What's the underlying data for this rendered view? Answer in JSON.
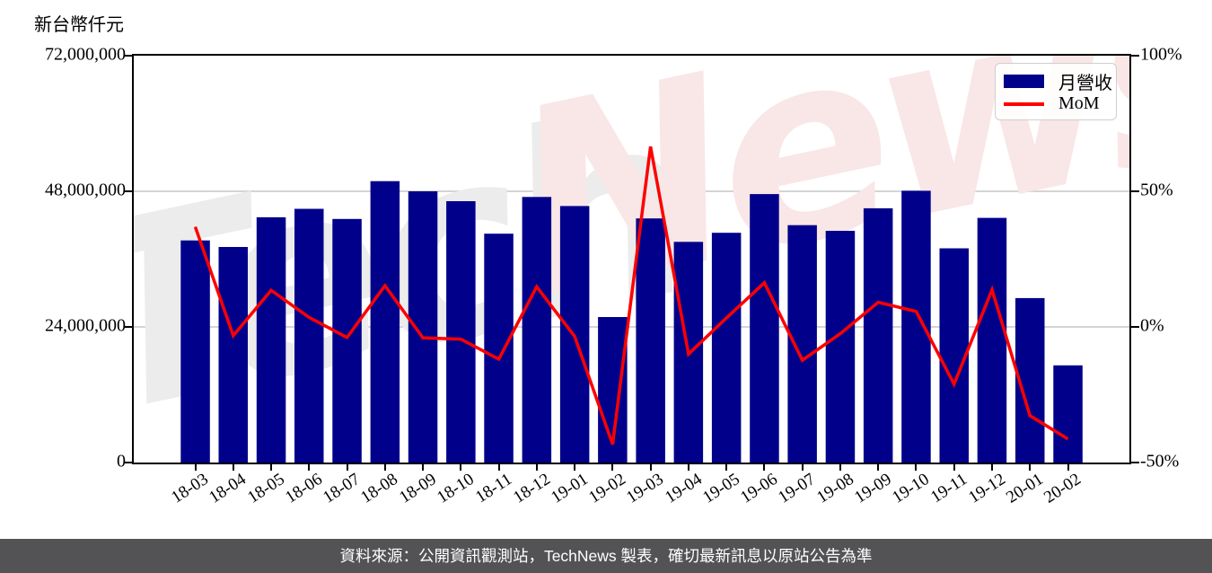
{
  "axis_unit_label": "新台幣仟元",
  "legend": {
    "series1": "月營收",
    "series2": "MoM"
  },
  "watermark": {
    "part1": "Tech",
    "part2": "News"
  },
  "footer": {
    "source_note": "資料來源：公開資訊觀測站，TechNews 製表，確切最新訊息以原站公告為準"
  },
  "colors": {
    "bar": "#00008B",
    "line": "#FF0000",
    "grid": "#d4d4d4",
    "axis": "#000000",
    "footer_bg": "#535356",
    "watermark_gray": "#ececec",
    "watermark_pink": "#f9e6e6",
    "legend_border": "#cfcfcf"
  },
  "chart_data": {
    "type": "bar",
    "title": "",
    "categories": [
      "18-03",
      "18-04",
      "18-05",
      "18-06",
      "18-07",
      "18-08",
      "18-09",
      "18-10",
      "18-11",
      "18-12",
      "19-01",
      "19-02",
      "19-03",
      "19-04",
      "19-05",
      "19-06",
      "19-07",
      "19-08",
      "19-09",
      "19-10",
      "19-11",
      "19-12",
      "20-01",
      "20-02"
    ],
    "series": [
      {
        "name": "月營收",
        "type": "bar",
        "yaxis": "left",
        "color": "#00008B",
        "values": [
          39300000,
          38150000,
          43400000,
          44900000,
          43100000,
          49800000,
          48000000,
          46250000,
          40500000,
          47000000,
          45400000,
          25750000,
          43200000,
          39050000,
          40650000,
          47500000,
          42000000,
          41000000,
          45000000,
          48100000,
          37900000,
          43300000,
          29100000,
          17200000
        ]
      },
      {
        "name": "MoM",
        "type": "line",
        "yaxis": "right",
        "color": "#FF0000",
        "values_percent": [
          36.9,
          -3.2,
          13.5,
          3.5,
          -3.9,
          15.2,
          -4.0,
          -4.5,
          -11.9,
          14.8,
          -3.5,
          -43.3,
          66.5,
          -10.0,
          3.3,
          16.3,
          -12.3,
          -2.5,
          9.1,
          5.7,
          -21.1,
          13.7,
          -32.7,
          -41.3
        ]
      }
    ],
    "left_axis": {
      "unit": "新台幣仟元",
      "ylim": [
        0,
        72000000
      ],
      "tick_values": [
        0,
        24000000,
        48000000,
        72000000
      ],
      "tick_labels": [
        "0",
        "24,000,000",
        "48,000,000",
        "72,000,000"
      ]
    },
    "right_axis": {
      "ylim": [
        -50,
        100
      ],
      "tick_values": [
        -50,
        0,
        50,
        100
      ],
      "tick_labels": [
        "-50%",
        "0%",
        "50%",
        "100%"
      ]
    },
    "grid": {
      "horizontal": true,
      "vertical": false
    },
    "legend_position": "upper right"
  }
}
